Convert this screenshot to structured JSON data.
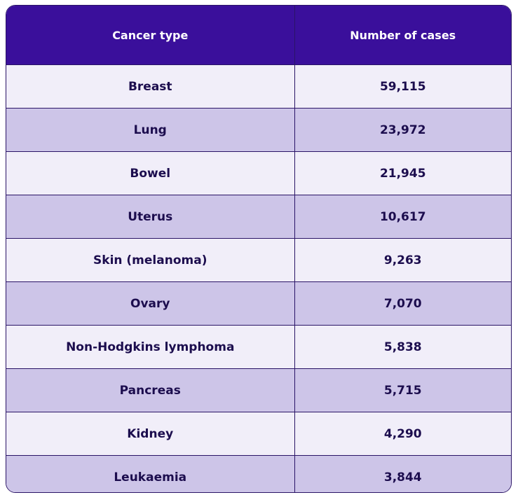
{
  "table": {
    "headers": [
      "Cancer type",
      "Number of cases"
    ],
    "rows": [
      [
        "Breast",
        "59,115"
      ],
      [
        "Lung",
        "23,972"
      ],
      [
        "Bowel",
        "21,945"
      ],
      [
        "Uterus",
        "10,617"
      ],
      [
        "Skin (melanoma)",
        "9,263"
      ],
      [
        "Ovary",
        "7,070"
      ],
      [
        "Non-Hodgkins lymphoma",
        "5,838"
      ],
      [
        "Pancreas",
        "5,715"
      ],
      [
        "Kidney",
        "4,290"
      ],
      [
        "Leukaemia",
        "3,844"
      ]
    ]
  },
  "colors": {
    "header_bg": "#3a0f9b",
    "row_light": "#f1eef9",
    "row_dark": "#cdc5e8",
    "text": "#1c0d4e"
  }
}
